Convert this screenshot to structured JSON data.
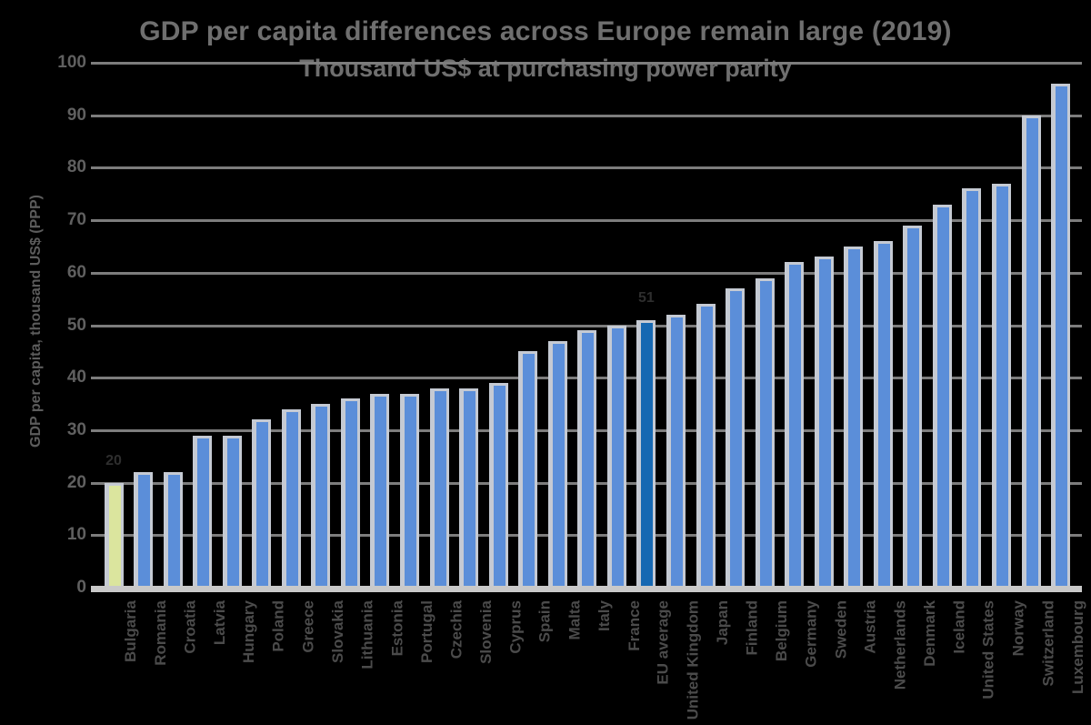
{
  "title": {
    "line1": "GDP per capita differences across Europe remain large (2019)",
    "line2": "Thousand US$ at purchasing power parity"
  },
  "y_axis": {
    "title": "GDP per capita, thousand US$ (PPP)",
    "tick_labels": [
      "100",
      "90",
      "80",
      "70",
      "60",
      "50",
      "40",
      "30",
      "20",
      "10",
      "0"
    ]
  },
  "colors": {
    "background": "#000000",
    "title_text": "#6f6f6f",
    "gridline": "#7d7d7d",
    "axis_line": "#c9c9c9",
    "bar_default": "#5b8ed9",
    "bar_highlight_dark": "#1668b2",
    "bar_highlight_first": "#dbe59e",
    "bar_outline": "#c5cad3",
    "x_label_text": "#4b4b4b",
    "data_label_text": "#2e2e2e"
  },
  "chart_data": {
    "type": "bar",
    "title": "GDP per capita differences across Europe remain large (2019)",
    "subtitle": "Thousand US$ at purchasing power parity",
    "xlabel": "",
    "ylabel": "GDP per capita, thousand US$ (PPP)",
    "ylim": [
      0,
      100
    ],
    "ytick_step": 10,
    "grid": true,
    "legend": false,
    "categories": [
      "Bulgaria",
      "Romania",
      "Croatia",
      "Latvia",
      "Hungary",
      "Poland",
      "Greece",
      "Slovakia",
      "Lithuania",
      "Estonia",
      "Portugal",
      "Czechia",
      "Slovenia",
      "Cyprus",
      "Spain",
      "Malta",
      "Italy",
      "France",
      "EU average",
      "United Kingdom",
      "Japan",
      "Finland",
      "Belgium",
      "Germany",
      "Sweden",
      "Austria",
      "Netherlands",
      "Denmark",
      "Iceland",
      "United States",
      "Norway",
      "Switzerland",
      "Luxembourg"
    ],
    "values": [
      20,
      22,
      22,
      29,
      29,
      32,
      34,
      35,
      36,
      37,
      37,
      38,
      38,
      39,
      45,
      47,
      49,
      50,
      51,
      52,
      54,
      57,
      59,
      62,
      63,
      65,
      66,
      69,
      73,
      76,
      77,
      90,
      96
    ],
    "highlight_first_index": 0,
    "highlight_dark_index": 18,
    "data_labels": [
      {
        "index": 0,
        "text": "20"
      },
      {
        "index": 18,
        "text": "51"
      }
    ]
  }
}
